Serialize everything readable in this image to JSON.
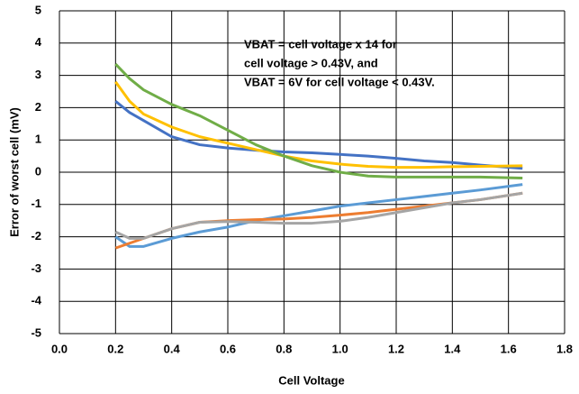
{
  "chart_data": {
    "type": "line",
    "xlabel": "Cell Voltage",
    "ylabel": "Error of worst cell (mV)",
    "annotation": [
      "VBAT = cell voltage x 14 for",
      "cell voltage > 0.43V, and",
      "VBAT = 6V for cell voltage < 0.43V."
    ],
    "x": [
      0.2,
      0.25,
      0.3,
      0.4,
      0.5,
      0.6,
      0.7,
      0.8,
      0.9,
      1.0,
      1.1,
      1.2,
      1.3,
      1.4,
      1.5,
      1.65
    ],
    "series": [
      {
        "color": "#4472c4",
        "values": [
          2.2,
          1.85,
          1.6,
          1.1,
          0.85,
          0.75,
          0.68,
          0.63,
          0.6,
          0.55,
          0.5,
          0.43,
          0.35,
          0.3,
          0.22,
          0.12
        ]
      },
      {
        "color": "#ffc000",
        "values": [
          2.8,
          2.2,
          1.8,
          1.4,
          1.1,
          0.9,
          0.7,
          0.5,
          0.35,
          0.25,
          0.18,
          0.15,
          0.15,
          0.17,
          0.18,
          0.2
        ]
      },
      {
        "color": "#70ad47",
        "values": [
          3.35,
          2.9,
          2.55,
          2.1,
          1.75,
          1.3,
          0.85,
          0.5,
          0.2,
          0,
          -0.12,
          -0.15,
          -0.15,
          -0.15,
          -0.15,
          -0.18
        ]
      },
      {
        "color": "#5b9bd5",
        "values": [
          -2,
          -2.3,
          -2.3,
          -2.05,
          -1.85,
          -1.7,
          -1.5,
          -1.35,
          -1.2,
          -1.05,
          -0.95,
          -0.85,
          -0.75,
          -0.65,
          -0.55,
          -0.38
        ]
      },
      {
        "color": "#ed7d31",
        "values": [
          -2.35,
          -2.2,
          -2.05,
          -1.75,
          -1.55,
          -1.5,
          -1.47,
          -1.45,
          -1.4,
          -1.33,
          -1.25,
          -1.15,
          -1.05,
          -0.95,
          -0.85,
          -0.65
        ]
      },
      {
        "color": "#a5a5a5",
        "values": [
          -1.85,
          -2.05,
          -2.05,
          -1.75,
          -1.55,
          -1.53,
          -1.55,
          -1.58,
          -1.58,
          -1.52,
          -1.4,
          -1.25,
          -1.1,
          -0.95,
          -0.85,
          -0.65
        ]
      }
    ],
    "xlim": [
      0,
      1.8
    ],
    "xticks": [
      {
        "value": 0,
        "label": "0.0"
      },
      0.2,
      0.4,
      0.6,
      0.8,
      {
        "value": 1,
        "label": "1.0"
      },
      1.2,
      1.4,
      1.6,
      1.8
    ],
    "ylim": [
      -5,
      5
    ],
    "yticks": [
      -5,
      -4,
      -3,
      -2,
      -1,
      0,
      1,
      2,
      3,
      4,
      5
    ],
    "grid": true
  }
}
